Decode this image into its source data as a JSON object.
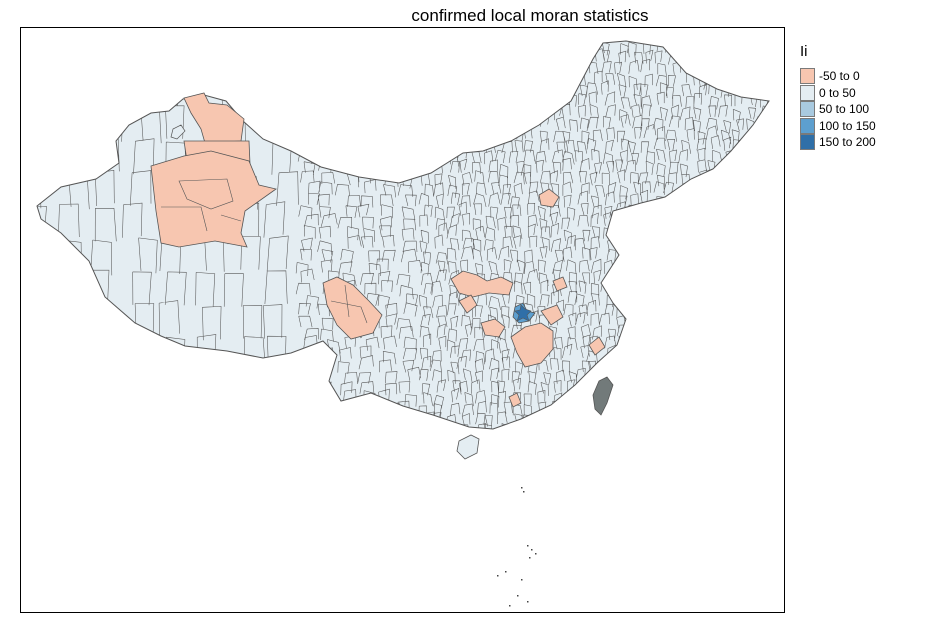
{
  "title": "confirmed local moran statistics",
  "legend": {
    "title": "Ii",
    "items": [
      {
        "label": "-50 to 0",
        "color": "#f7c6b0"
      },
      {
        "label": "0 to 50",
        "color": "#e4edf2"
      },
      {
        "label": "50 to 100",
        "color": "#a9cae0"
      },
      {
        "label": "100 to 150",
        "color": "#5d9fcf"
      },
      {
        "label": "150 to 200",
        "color": "#2f6fa8"
      }
    ]
  },
  "colors": {
    "border": "#555555",
    "no_data": "#727a7a",
    "frame": "#000000"
  }
}
